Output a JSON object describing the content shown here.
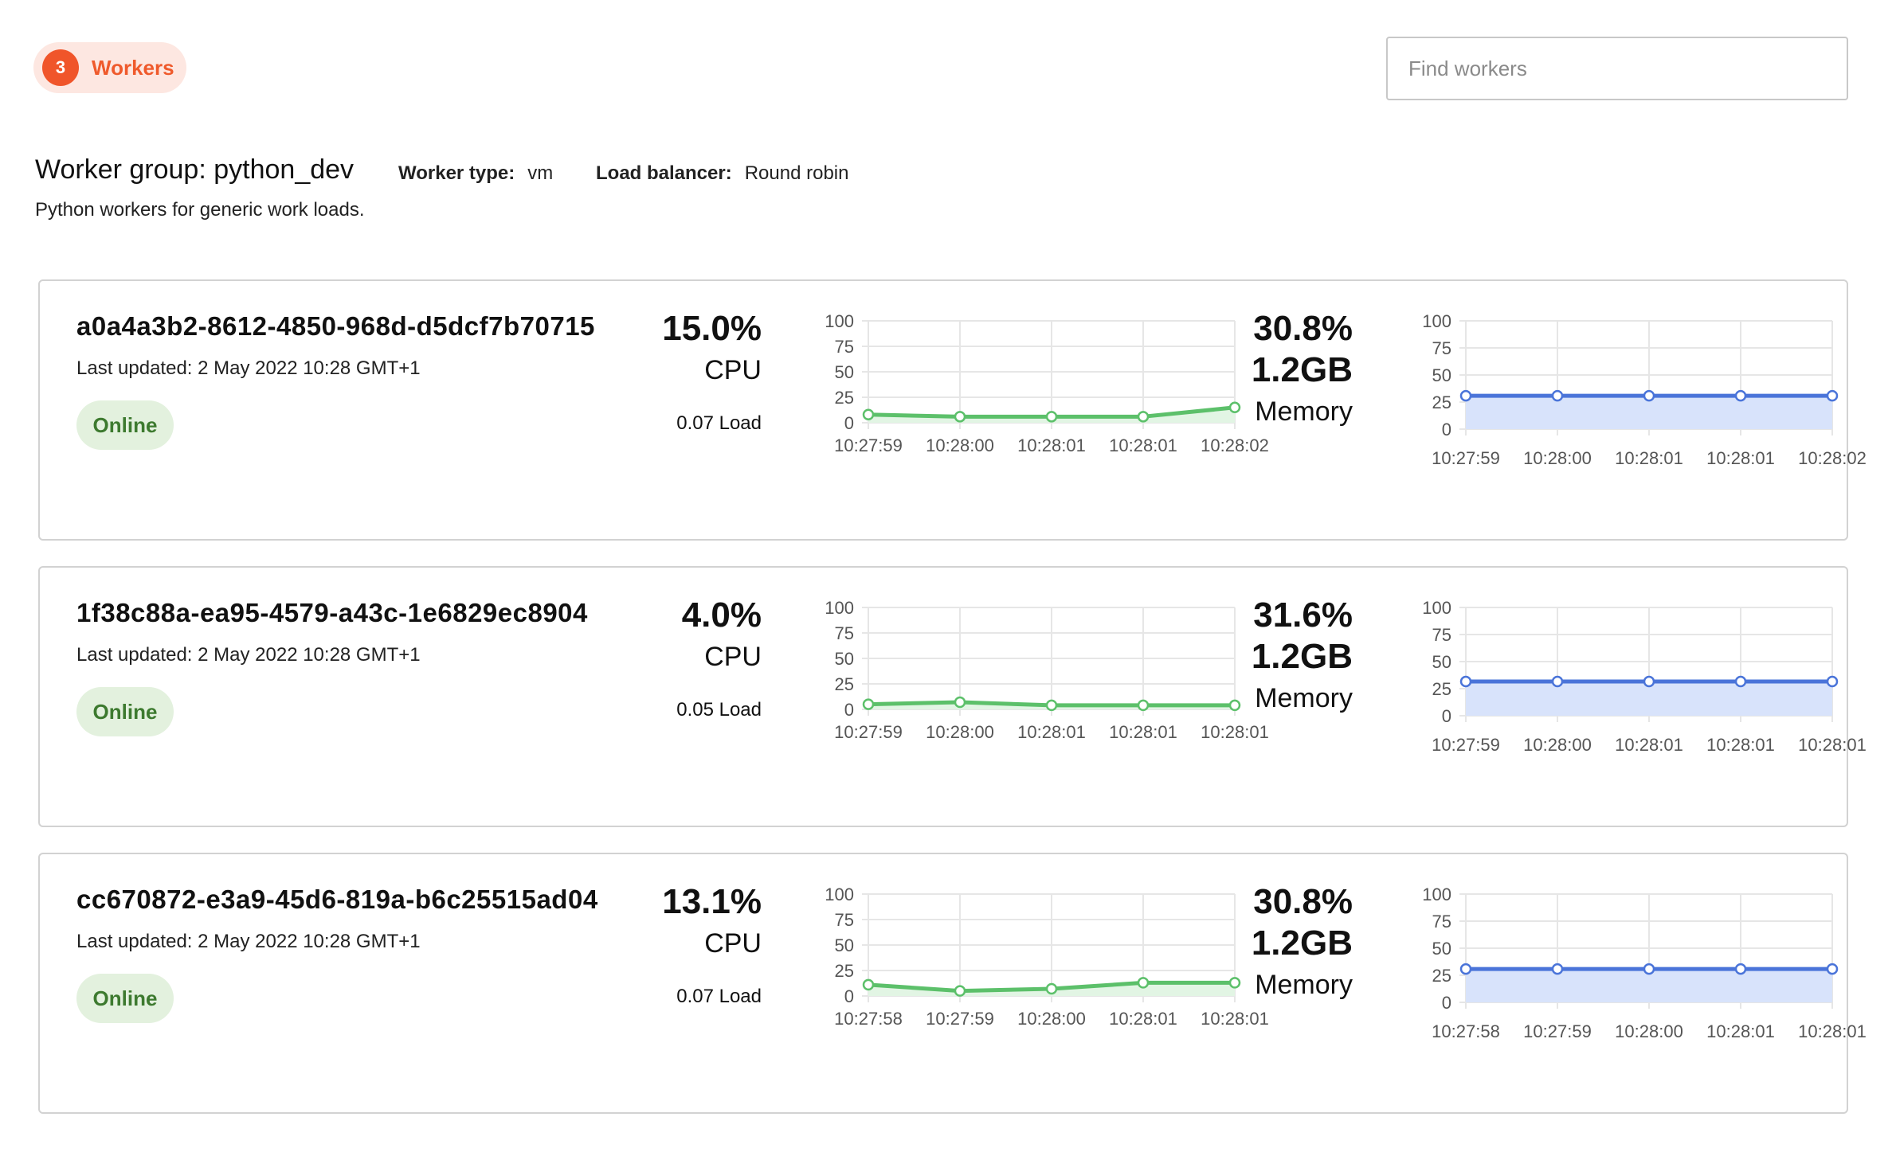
{
  "header": {
    "count": "3",
    "label": "Workers"
  },
  "search": {
    "placeholder": "Find workers",
    "value": ""
  },
  "group": {
    "title": "Worker group: python_dev",
    "worker_type_label": "Worker type:",
    "worker_type": "vm",
    "load_balancer_label": "Load balancer:",
    "load_balancer": "Round robin",
    "description": "Python workers for generic work loads."
  },
  "colors": {
    "cpu_line": "#5cc06a",
    "cpu_fill": "#e2f5e4",
    "mem_line": "#4a74d9",
    "mem_fill": "#d8e3fb",
    "accent": "#f0552a"
  },
  "workers": [
    {
      "id": "a0a4a3b2-8612-4850-968d-d5dcf7b70715",
      "updated": "Last updated: 2 May 2022 10:28 GMT+1",
      "status": "Online",
      "cpu": "15.0%",
      "cpu_label": "CPU",
      "load": "0.07 Load",
      "memory_pct": "30.8%",
      "memory_size": "1.2GB",
      "memory_label": "Memory"
    },
    {
      "id": "1f38c88a-ea95-4579-a43c-1e6829ec8904",
      "updated": "Last updated: 2 May 2022 10:28 GMT+1",
      "status": "Online",
      "cpu": "4.0%",
      "cpu_label": "CPU",
      "load": "0.05 Load",
      "memory_pct": "31.6%",
      "memory_size": "1.2GB",
      "memory_label": "Memory"
    },
    {
      "id": "cc670872-e3a9-45d6-819a-b6c25515ad04",
      "updated": "Last updated: 2 May 2022 10:28 GMT+1",
      "status": "Online",
      "cpu": "13.1%",
      "cpu_label": "CPU",
      "load": "0.07 Load",
      "memory_pct": "30.8%",
      "memory_size": "1.2GB",
      "memory_label": "Memory"
    }
  ],
  "chart_data": [
    {
      "type": "area",
      "worker": 1,
      "metric": "cpu",
      "x": [
        "10:27:59",
        "10:28:00",
        "10:28:01",
        "10:28:01",
        "10:28:02"
      ],
      "values": [
        8,
        6,
        6,
        6,
        15
      ],
      "ylim": [
        0,
        100
      ],
      "yticks": [
        0,
        25,
        50,
        75,
        100
      ],
      "grid": true
    },
    {
      "type": "area",
      "worker": 1,
      "metric": "memory",
      "x": [
        "10:27:59",
        "10:28:00",
        "10:28:01",
        "10:28:01",
        "10:28:02"
      ],
      "values": [
        30.8,
        30.8,
        30.8,
        30.8,
        30.8
      ],
      "ylim": [
        0,
        100
      ],
      "yticks": [
        0,
        25,
        50,
        75,
        100
      ],
      "grid": true
    },
    {
      "type": "area",
      "worker": 2,
      "metric": "cpu",
      "x": [
        "10:27:59",
        "10:28:00",
        "10:28:01",
        "10:28:01",
        "10:28:01"
      ],
      "values": [
        5,
        7,
        4,
        4,
        4
      ],
      "ylim": [
        0,
        100
      ],
      "yticks": [
        0,
        25,
        50,
        75,
        100
      ],
      "grid": true
    },
    {
      "type": "area",
      "worker": 2,
      "metric": "memory",
      "x": [
        "10:27:59",
        "10:28:00",
        "10:28:01",
        "10:28:01",
        "10:28:01"
      ],
      "values": [
        31.6,
        31.6,
        31.6,
        31.6,
        31.6
      ],
      "ylim": [
        0,
        100
      ],
      "yticks": [
        0,
        25,
        50,
        75,
        100
      ],
      "grid": true
    },
    {
      "type": "area",
      "worker": 3,
      "metric": "cpu",
      "x": [
        "10:27:58",
        "10:27:59",
        "10:28:00",
        "10:28:01",
        "10:28:01"
      ],
      "values": [
        11,
        5,
        7,
        13,
        13
      ],
      "ylim": [
        0,
        100
      ],
      "yticks": [
        0,
        25,
        50,
        75,
        100
      ],
      "grid": true
    },
    {
      "type": "area",
      "worker": 3,
      "metric": "memory",
      "x": [
        "10:27:58",
        "10:27:59",
        "10:28:00",
        "10:28:01",
        "10:28:01"
      ],
      "values": [
        30.8,
        30.8,
        30.8,
        30.8,
        30.8
      ],
      "ylim": [
        0,
        100
      ],
      "yticks": [
        0,
        25,
        50,
        75,
        100
      ],
      "grid": true
    }
  ]
}
